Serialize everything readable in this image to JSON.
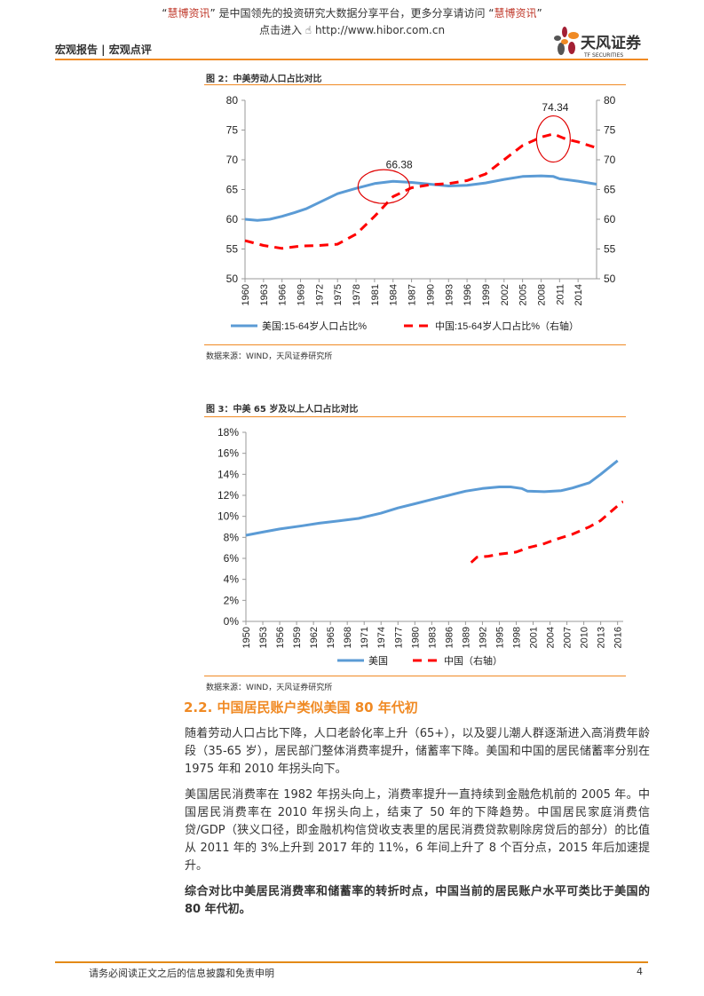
{
  "promo": {
    "quote_open": "“",
    "brand": "慧博资讯",
    "middle": "” 是中国领先的投资研究大数据分享平台，更多分享请访问 “",
    "brand2": "慧博资讯",
    "quote_close": "”",
    "enter": "点击进入",
    "url": "http://www.hibor.com.cn"
  },
  "header": {
    "report_type": "宏观报告 | 宏观点评",
    "logo_cn": "天风证券",
    "logo_en": "TF SECURITIES"
  },
  "colors": {
    "accent": "#F08A24",
    "us": "#5B9BD5",
    "china": "#FF0000"
  },
  "figure2": {
    "title": "图 2：中美劳动人口占比对比",
    "source": "数据来源：WIND，天风证券研究所"
  },
  "figure3": {
    "title": "图 3：中美 65 岁及以上人口占比对比",
    "source": "数据来源：WIND，天风证券研究所"
  },
  "chart_data": [
    {
      "type": "line",
      "xlim": [
        1960,
        2017
      ],
      "ylim": [
        50,
        80
      ],
      "y2lim": [
        50,
        80
      ],
      "yticks": [
        50,
        55,
        60,
        65,
        70,
        75,
        80
      ],
      "xticks": [
        1960,
        1963,
        1966,
        1969,
        1972,
        1975,
        1978,
        1981,
        1984,
        1987,
        1990,
        1993,
        1996,
        1999,
        2002,
        2005,
        2008,
        2011,
        2014
      ],
      "legend": "bottom",
      "annotations": [
        {
          "text": "66.38",
          "x": 1984,
          "y": 66.38
        },
        {
          "text": "74.34",
          "x": 2010,
          "y": 74.34
        }
      ],
      "series": [
        {
          "name": "美国:15-64岁人口占比%",
          "style": "solid",
          "axis": "left",
          "points": [
            [
              1960,
              60.0
            ],
            [
              1962,
              59.8
            ],
            [
              1964,
              60.0
            ],
            [
              1966,
              60.5
            ],
            [
              1968,
              61.1
            ],
            [
              1970,
              61.8
            ],
            [
              1972,
              62.8
            ],
            [
              1975,
              64.3
            ],
            [
              1978,
              65.2
            ],
            [
              1981,
              66.0
            ],
            [
              1984,
              66.38
            ],
            [
              1987,
              66.2
            ],
            [
              1990,
              65.9
            ],
            [
              1993,
              65.6
            ],
            [
              1996,
              65.7
            ],
            [
              1999,
              66.1
            ],
            [
              2002,
              66.7
            ],
            [
              2005,
              67.2
            ],
            [
              2008,
              67.3
            ],
            [
              2010,
              67.2
            ],
            [
              2011,
              66.8
            ],
            [
              2014,
              66.4
            ],
            [
              2017,
              65.9
            ]
          ]
        },
        {
          "name": "中国:15-64岁人口占比%（右轴）",
          "style": "dashed",
          "axis": "right",
          "points": [
            [
              1960,
              56.4
            ],
            [
              1963,
              55.6
            ],
            [
              1966,
              55.1
            ],
            [
              1969,
              55.5
            ],
            [
              1972,
              55.6
            ],
            [
              1975,
              55.8
            ],
            [
              1978,
              57.5
            ],
            [
              1981,
              60.5
            ],
            [
              1984,
              63.8
            ],
            [
              1987,
              65.3
            ],
            [
              1990,
              65.8
            ],
            [
              1993,
              66.0
            ],
            [
              1996,
              66.5
            ],
            [
              1999,
              67.6
            ],
            [
              2002,
              70.0
            ],
            [
              2005,
              72.4
            ],
            [
              2008,
              73.8
            ],
            [
              2010,
              74.34
            ],
            [
              2012,
              73.5
            ],
            [
              2014,
              73.0
            ],
            [
              2017,
              72.0
            ]
          ]
        }
      ]
    },
    {
      "type": "line",
      "xlim": [
        1950,
        2017
      ],
      "ylim": [
        0,
        18
      ],
      "yticks": [
        0,
        2,
        4,
        6,
        8,
        10,
        12,
        14,
        16,
        18
      ],
      "ytick_suffix": "%",
      "xticks": [
        1950,
        1953,
        1956,
        1959,
        1962,
        1965,
        1968,
        1971,
        1974,
        1977,
        1980,
        1983,
        1986,
        1989,
        1992,
        1995,
        1998,
        2001,
        2004,
        2007,
        2010,
        2013,
        2016
      ],
      "legend": "bottom",
      "series": [
        {
          "name": "美国",
          "style": "solid",
          "points": [
            [
              1950,
              8.2
            ],
            [
              1953,
              8.5
            ],
            [
              1956,
              8.8
            ],
            [
              1960,
              9.1
            ],
            [
              1963,
              9.35
            ],
            [
              1967,
              9.6
            ],
            [
              1970,
              9.8
            ],
            [
              1974,
              10.3
            ],
            [
              1977,
              10.8
            ],
            [
              1980,
              11.2
            ],
            [
              1983,
              11.6
            ],
            [
              1986,
              12.0
            ],
            [
              1989,
              12.4
            ],
            [
              1992,
              12.65
            ],
            [
              1995,
              12.8
            ],
            [
              1997,
              12.8
            ],
            [
              1999,
              12.65
            ],
            [
              2000,
              12.4
            ],
            [
              2003,
              12.35
            ],
            [
              2006,
              12.45
            ],
            [
              2008,
              12.7
            ],
            [
              2011,
              13.2
            ],
            [
              2013,
              14.0
            ],
            [
              2016,
              15.3
            ]
          ]
        },
        {
          "name": "中国（右轴）",
          "style": "dashed",
          "points": [
            [
              1990,
              5.6
            ],
            [
              1991,
              6.1
            ],
            [
              1993,
              6.2
            ],
            [
              1995,
              6.4
            ],
            [
              1998,
              6.6
            ],
            [
              2000,
              7.0
            ],
            [
              2003,
              7.4
            ],
            [
              2005,
              7.8
            ],
            [
              2008,
              8.3
            ],
            [
              2011,
              9.0
            ],
            [
              2013,
              9.6
            ],
            [
              2016,
              11.0
            ],
            [
              2017,
              11.4
            ]
          ]
        }
      ]
    }
  ],
  "section": {
    "title": "2.2. 中国居民账户类似美国 80 年代初"
  },
  "paragraphs": [
    "随着劳动人口占比下降，人口老龄化率上升（65+），以及婴儿潮人群逐渐进入高消费年龄段（35-65 岁），居民部门整体消费率提升，储蓄率下降。美国和中国的居民储蓄率分别在 1975 年和 2010 年拐头向下。",
    "美国居民消费率在 1982 年拐头向上，消费率提升一直持续到金融危机前的 2005 年。中国居民消费率在 2010 年拐头向上，结束了 50 年的下降趋势。中国居民家庭消费信贷/GDP（狭义口径，即金融机构信贷收支表里的居民消费贷款剔除房贷后的部分）的比值从 2011 年的 3%上升到 2017 年的 11%，6 年间上升了 8 个百分点，2015 年后加速提升。",
    "综合对比中美居民消费率和储蓄率的转折时点，中国当前的居民账户水平可类比于美国的 80 年代初。"
  ],
  "footer": {
    "disclaimer": "请务必阅读正文之后的信息披露和免责申明",
    "page": "4"
  }
}
